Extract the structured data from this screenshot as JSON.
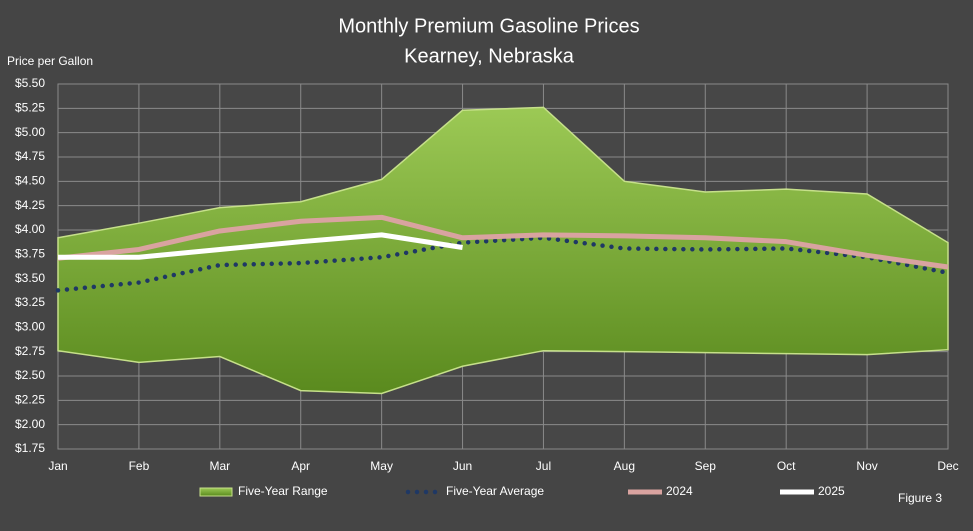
{
  "chart_data": {
    "type": "line",
    "title": "Monthly Premium Gasoline Prices",
    "subtitle": "Kearney, Nebraska",
    "y_label": "Price per Gallon",
    "annotation": "Figure 3",
    "categories": [
      "Jan",
      "Feb",
      "Mar",
      "Apr",
      "May",
      "Jun",
      "Jul",
      "Aug",
      "Sep",
      "Oct",
      "Nov",
      "Dec"
    ],
    "ylim": [
      1.75,
      5.5
    ],
    "yticks": [
      {
        "value": 1.75,
        "label": "$1.75"
      },
      {
        "value": 2.0,
        "label": "$2.00"
      },
      {
        "value": 2.25,
        "label": "$2.25"
      },
      {
        "value": 2.5,
        "label": "$2.50"
      },
      {
        "value": 2.75,
        "label": "$2.75"
      },
      {
        "value": 3.0,
        "label": "$3.00"
      },
      {
        "value": 3.25,
        "label": "$3.25"
      },
      {
        "value": 3.5,
        "label": "$3.50"
      },
      {
        "value": 3.75,
        "label": "$3.75"
      },
      {
        "value": 4.0,
        "label": "$4.00"
      },
      {
        "value": 4.25,
        "label": "$4.25"
      },
      {
        "value": 4.5,
        "label": "$4.50"
      },
      {
        "value": 4.75,
        "label": "$4.75"
      },
      {
        "value": 5.0,
        "label": "$5.00"
      },
      {
        "value": 5.25,
        "label": "$5.25"
      },
      {
        "value": 5.5,
        "label": "$5.50"
      }
    ],
    "grid": true,
    "series": [
      {
        "name": "Five-Year Range",
        "type": "range",
        "color": "#7aa83a",
        "high": [
          3.92,
          4.07,
          4.23,
          4.29,
          4.52,
          5.23,
          5.26,
          4.5,
          4.39,
          4.42,
          4.37,
          3.87
        ],
        "low": [
          2.76,
          2.64,
          2.7,
          2.35,
          2.32,
          2.6,
          2.76,
          2.75,
          2.74,
          2.73,
          2.72,
          2.77
        ]
      },
      {
        "name": "Five-Year Average",
        "type": "dotted",
        "color": "#1f3864",
        "values": [
          3.38,
          3.46,
          3.64,
          3.66,
          3.72,
          3.87,
          3.92,
          3.81,
          3.8,
          3.81,
          3.72,
          3.56
        ]
      },
      {
        "name": "2024",
        "type": "line",
        "color": "#d9a3a0",
        "values": [
          3.71,
          3.8,
          3.99,
          4.09,
          4.13,
          3.92,
          3.95,
          3.94,
          3.92,
          3.88,
          3.74,
          3.62
        ]
      },
      {
        "name": "2025",
        "type": "line",
        "color": "#ffffff",
        "values": [
          3.72,
          3.72,
          3.8,
          3.88,
          3.95,
          3.82,
          null,
          null,
          null,
          null,
          null,
          null
        ]
      }
    ]
  }
}
